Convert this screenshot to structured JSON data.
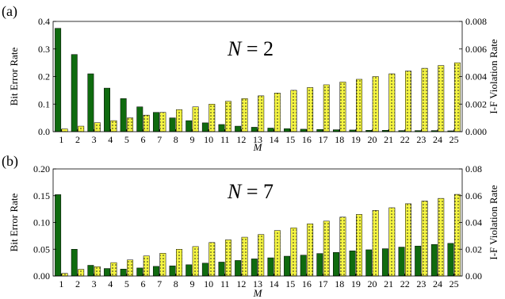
{
  "chart_data": [
    {
      "type": "bar",
      "panel_label": "(a)",
      "annotation": "N = 2",
      "annotation_var": "N",
      "annotation_rest": " = 2",
      "xlabel": "M",
      "ylabel": "Bit Error Rate",
      "y2label": "I-F Violation Rate",
      "categories": [
        "1",
        "2",
        "3",
        "4",
        "5",
        "6",
        "7",
        "8",
        "9",
        "10",
        "11",
        "12",
        "13",
        "14",
        "15",
        "16",
        "17",
        "18",
        "19",
        "20",
        "21",
        "22",
        "23",
        "24",
        "25"
      ],
      "ylim": [
        0,
        0.4
      ],
      "y2lim": [
        0,
        0.008
      ],
      "yticks": [
        "0.0",
        "0.1",
        "0.2",
        "0.3",
        "0.4"
      ],
      "y2ticks": [
        "0.000",
        "0.002",
        "0.004",
        "0.006",
        "0.008"
      ],
      "series": [
        {
          "axis": "left",
          "color": "#0f6b0f",
          "values": [
            0.375,
            0.28,
            0.21,
            0.158,
            0.12,
            0.09,
            0.07,
            0.05,
            0.04,
            0.032,
            0.026,
            0.02,
            0.016,
            0.013,
            0.011,
            0.009,
            0.008,
            0.007,
            0.006,
            0.005,
            0.005,
            0.004,
            0.004,
            0.004,
            0.003
          ]
        },
        {
          "axis": "right",
          "color": "#f5f542",
          "pattern": "dotted",
          "values": [
            0.0002,
            0.0004,
            0.00065,
            0.0008,
            0.001,
            0.0012,
            0.0014,
            0.0016,
            0.0018,
            0.002,
            0.0022,
            0.0024,
            0.0026,
            0.0028,
            0.003,
            0.0032,
            0.0034,
            0.0036,
            0.0038,
            0.004,
            0.0042,
            0.0044,
            0.0046,
            0.0048,
            0.005
          ]
        }
      ]
    },
    {
      "type": "bar",
      "panel_label": "(b)",
      "annotation": "N = 7",
      "annotation_var": "N",
      "annotation_rest": " = 7",
      "xlabel": "M",
      "ylabel": "Bit Error Rate",
      "y2label": "I-F Violation Rate",
      "categories": [
        "1",
        "2",
        "3",
        "4",
        "5",
        "6",
        "7",
        "8",
        "9",
        "10",
        "11",
        "12",
        "13",
        "14",
        "15",
        "16",
        "17",
        "18",
        "19",
        "20",
        "21",
        "22",
        "23",
        "24",
        "25"
      ],
      "ylim": [
        0,
        0.2
      ],
      "y2lim": [
        0,
        0.08
      ],
      "yticks": [
        "0.00",
        "0.05",
        "0.10",
        "0.15",
        "0.20"
      ],
      "y2ticks": [
        "0.00",
        "0.02",
        "0.04",
        "0.06",
        "0.08"
      ],
      "series": [
        {
          "axis": "left",
          "color": "#0f6b0f",
          "values": [
            0.152,
            0.05,
            0.02,
            0.014,
            0.013,
            0.015,
            0.018,
            0.019,
            0.021,
            0.024,
            0.026,
            0.029,
            0.032,
            0.034,
            0.037,
            0.039,
            0.042,
            0.044,
            0.047,
            0.049,
            0.051,
            0.054,
            0.056,
            0.059,
            0.061
          ]
        },
        {
          "axis": "right",
          "color": "#f5f542",
          "pattern": "dotted",
          "values": [
            0.002,
            0.005,
            0.007,
            0.01,
            0.012,
            0.015,
            0.017,
            0.02,
            0.022,
            0.025,
            0.027,
            0.029,
            0.031,
            0.034,
            0.036,
            0.039,
            0.041,
            0.044,
            0.046,
            0.049,
            0.051,
            0.054,
            0.056,
            0.058,
            0.061
          ]
        }
      ]
    }
  ]
}
